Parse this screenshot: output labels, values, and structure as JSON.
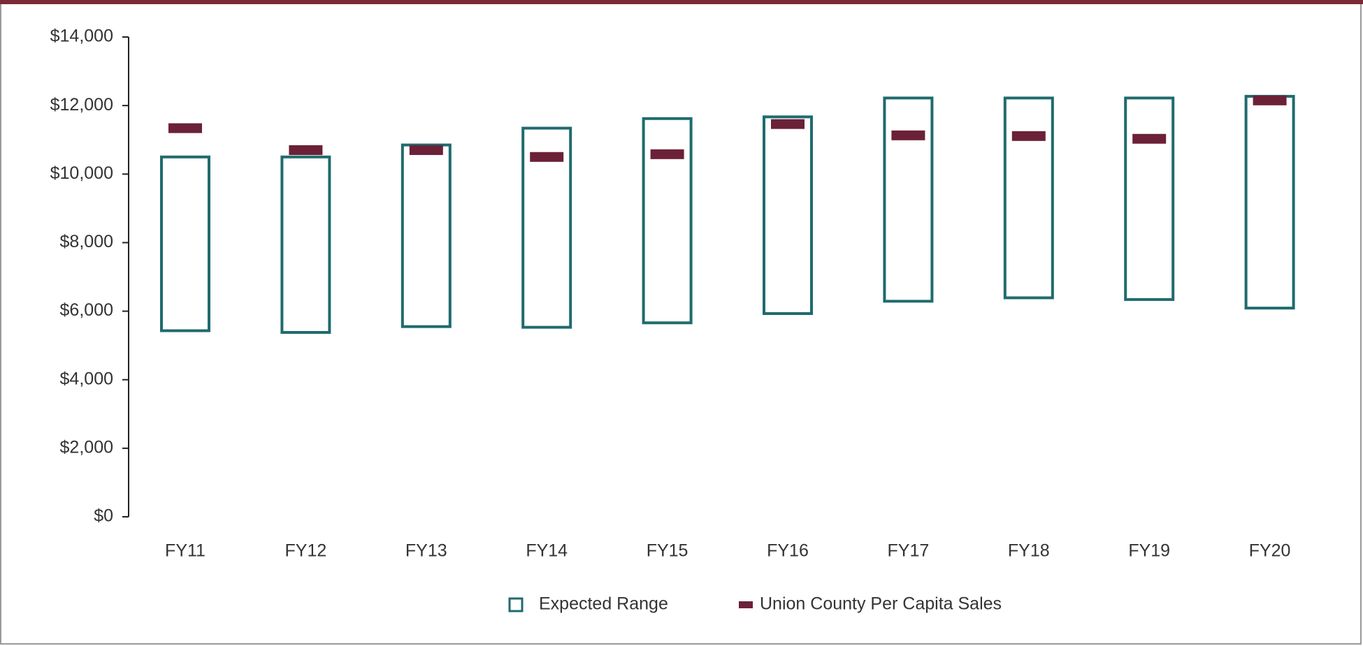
{
  "chart_data": {
    "type": "range-bar",
    "categories": [
      "FY11",
      "FY12",
      "FY13",
      "FY14",
      "FY15",
      "FY16",
      "FY17",
      "FY18",
      "FY19",
      "FY20"
    ],
    "series": [
      {
        "name": "Expected Range",
        "color": "#1f6b6e",
        "low": [
          5430,
          5380,
          5550,
          5530,
          5660,
          5930,
          6290,
          6390,
          6340,
          6090
        ],
        "high": [
          10500,
          10500,
          10850,
          11340,
          11620,
          11670,
          12220,
          12220,
          12220,
          12270
        ]
      },
      {
        "name": "Union County Per Capita Sales",
        "color": "#6b2138",
        "values": [
          11340,
          10700,
          10700,
          10500,
          10580,
          11460,
          11130,
          11110,
          11030,
          12150
        ]
      }
    ],
    "ylim": [
      0,
      14000
    ],
    "yticks": [
      {
        "value": 0,
        "label": "$0"
      },
      {
        "value": 2000,
        "label": "$2,000"
      },
      {
        "value": 4000,
        "label": "$4,000"
      },
      {
        "value": 6000,
        "label": "$6,000"
      },
      {
        "value": 8000,
        "label": "$8,000"
      },
      {
        "value": 10000,
        "label": "$10,000"
      },
      {
        "value": 12000,
        "label": "$12,000"
      },
      {
        "value": 14000,
        "label": "$14,000"
      }
    ],
    "grid": false,
    "legend": "bottom"
  }
}
